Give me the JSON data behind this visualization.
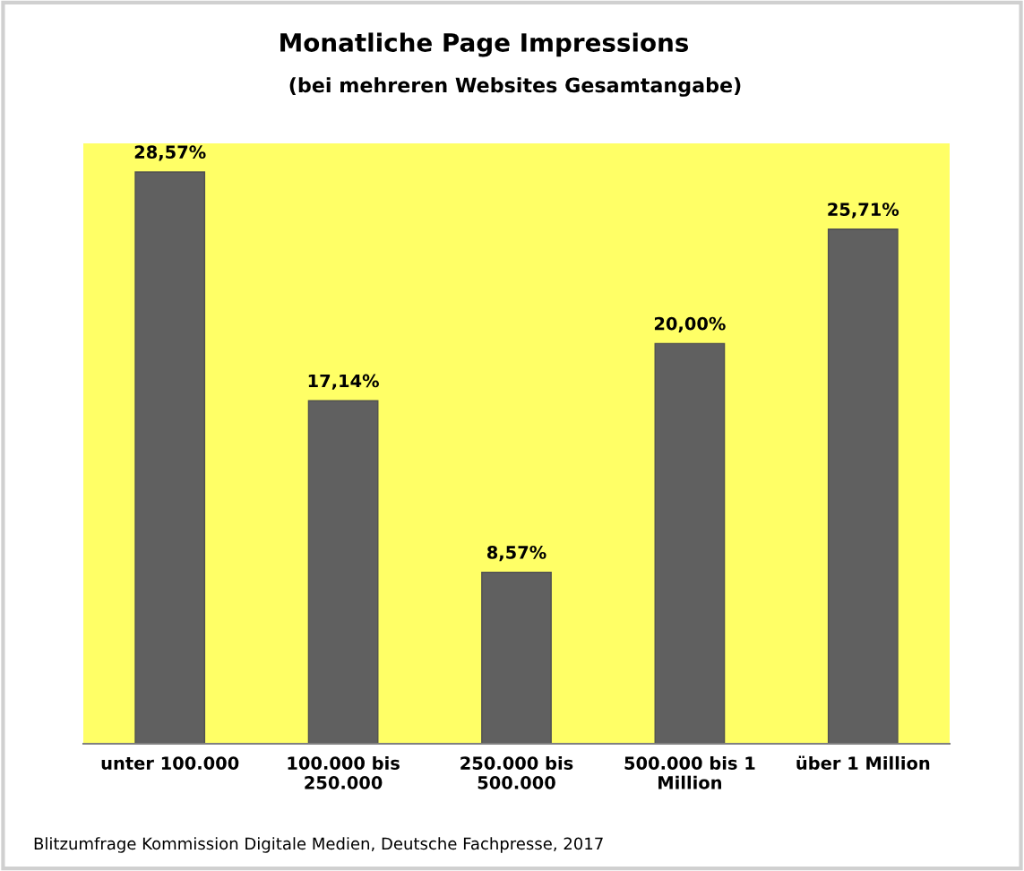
{
  "chart_data": {
    "type": "bar",
    "title": "Monatliche Page Impressions",
    "subtitle": "(bei mehreren Websites Gesamtangabe)",
    "categories": [
      "unter 100.000",
      "100.000 bis\n250.000",
      "250.000 bis\n500.000",
      "500.000 bis 1\nMillion",
      "über 1 Million"
    ],
    "values": [
      28.57,
      17.14,
      8.57,
      20.0,
      25.71
    ],
    "value_labels": [
      "28,57%",
      "17,14%",
      "8,57%",
      "20,00%",
      "25,71%"
    ],
    "color": "#606060",
    "ylim": [
      0,
      30
    ],
    "tick_labels": "x",
    "grid": false,
    "legend": false,
    "annotations": [
      "Blitzumfrage Kommission Digitale Medien, Deutsche Fachpresse, 2017"
    ]
  }
}
